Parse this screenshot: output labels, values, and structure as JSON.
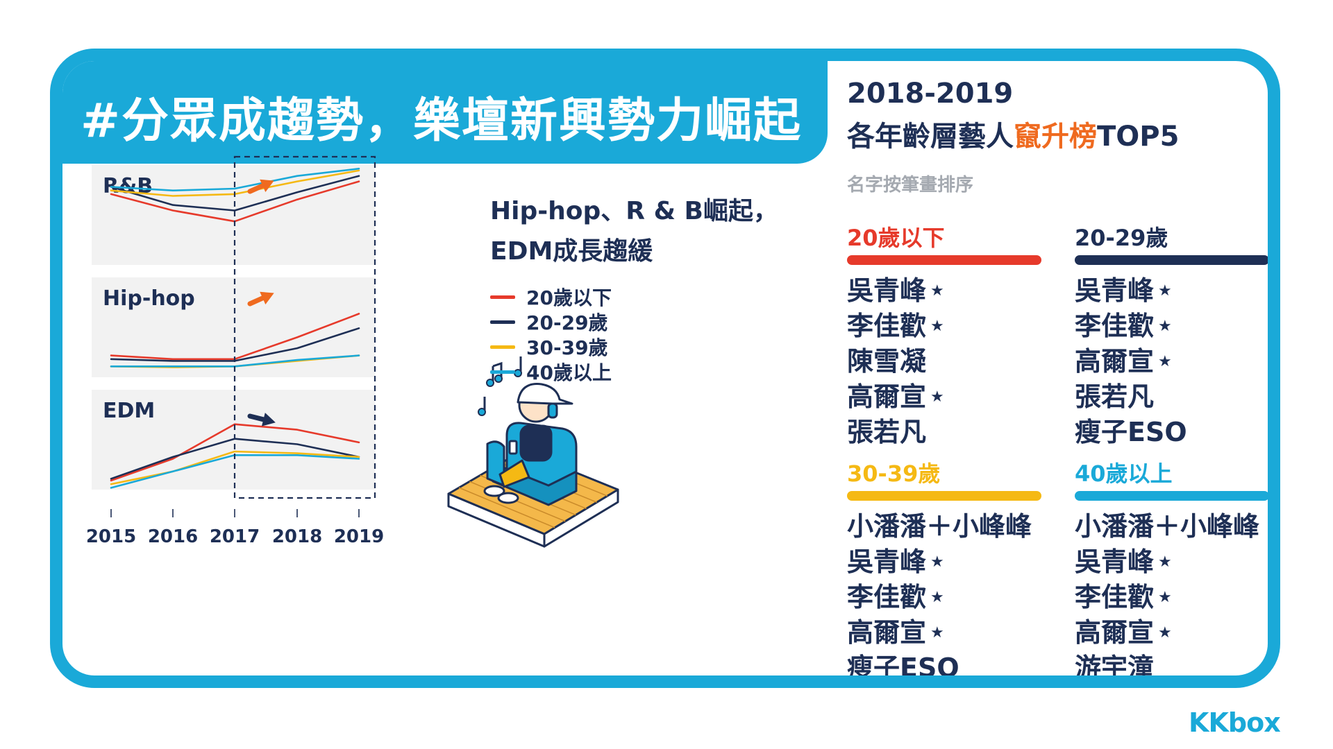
{
  "title": "#分眾成趨勢，樂壇新興勢力崛起",
  "chart_data": {
    "type": "line",
    "x": [
      "2015",
      "2016",
      "2017",
      "2018",
      "2019"
    ],
    "highlight": [
      "2017",
      "2019"
    ],
    "series_names": [
      "20歲以下",
      "20-29歲",
      "30-39歲",
      "40歲以上"
    ],
    "colors": [
      "#e63a2b",
      "#1e2f55",
      "#f5b914",
      "#1aa9d8"
    ],
    "panels": [
      {
        "label": "R&B",
        "trend": "up",
        "arrow_color": "#ef6a1f",
        "series": [
          {
            "values": [
              78,
              60,
              48,
              72,
              92
            ]
          },
          {
            "values": [
              86,
              66,
              60,
              80,
              98
            ]
          },
          {
            "values": [
              82,
              76,
              78,
              92,
              104
            ]
          },
          {
            "values": [
              86,
              82,
              84,
              98,
              106
            ]
          }
        ]
      },
      {
        "label": "Hip-hop",
        "trend": "up",
        "arrow_color": "#ef6a1f",
        "series": [
          {
            "values": [
              24,
              20,
              20,
              44,
              70
            ]
          },
          {
            "values": [
              20,
              18,
              18,
              32,
              54
            ]
          },
          {
            "values": [
              12,
              11,
              12,
              18,
              24
            ]
          },
          {
            "values": [
              12,
              12,
              12,
              19,
              24
            ]
          }
        ]
      },
      {
        "label": "EDM",
        "trend": "flat",
        "arrow_color": "#1e2f55",
        "series": [
          {
            "values": [
              10,
              34,
              72,
              66,
              52
            ]
          },
          {
            "values": [
              12,
              36,
              56,
              50,
              36
            ]
          },
          {
            "values": [
              6,
              20,
              42,
              40,
              36
            ]
          },
          {
            "values": [
              2,
              20,
              38,
              38,
              34
            ]
          }
        ]
      }
    ]
  },
  "subhead": [
    "Hip-hop、R & B崛起，",
    "EDM成長趨緩"
  ],
  "right": {
    "title_line1": "2018-2019",
    "title_pre": "各年齡層藝人",
    "title_highlight": "竄升榜",
    "title_post": "TOP5",
    "note": "名字按筆畫排序",
    "star_glyph": "★",
    "groups": [
      {
        "label": "20歲以下",
        "color": "#e63a2b",
        "names": [
          {
            "name": "吳青峰",
            "star": true
          },
          {
            "name": "李佳歡",
            "star": true
          },
          {
            "name": "陳雪凝",
            "star": false
          },
          {
            "name": "高爾宣",
            "star": true
          },
          {
            "name": "張若凡",
            "star": false
          }
        ]
      },
      {
        "label": "20-29歲",
        "color": "#1e2f55",
        "names": [
          {
            "name": "吳青峰",
            "star": true
          },
          {
            "name": "李佳歡",
            "star": true
          },
          {
            "name": "高爾宣",
            "star": true
          },
          {
            "name": "張若凡",
            "star": false
          },
          {
            "name": "瘦子ESO",
            "star": false
          }
        ]
      },
      {
        "label": "30-39歲",
        "color": "#f5b914",
        "names": [
          {
            "name": "小潘潘＋小峰峰",
            "star": false
          },
          {
            "name": "吳青峰",
            "star": true
          },
          {
            "name": "李佳歡",
            "star": true
          },
          {
            "name": "高爾宣",
            "star": true
          },
          {
            "name": "瘦子ESO",
            "star": false
          }
        ]
      },
      {
        "label": "40歲以上",
        "color": "#1aa9d8",
        "names": [
          {
            "name": "小潘潘＋小峰峰",
            "star": false
          },
          {
            "name": "吳青峰",
            "star": true
          },
          {
            "name": "李佳歡",
            "star": true
          },
          {
            "name": "高爾宣",
            "star": true
          },
          {
            "name": "游宇潼",
            "star": false
          }
        ]
      }
    ]
  },
  "logo": "KKbox",
  "illustration": "listener-headphones-armchair"
}
